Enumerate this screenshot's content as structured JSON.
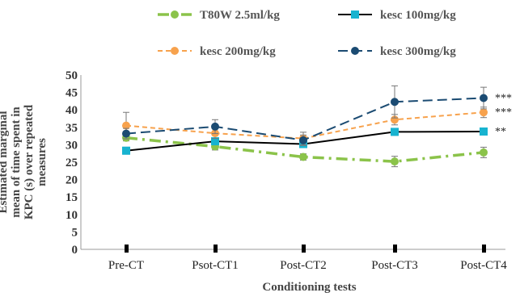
{
  "chart_data": {
    "type": "line",
    "xlabel": "Conditioning tests",
    "ylabel": "Estimated marginal mean of time spent in KPC (s) over repeated measures",
    "ylim": [
      0,
      50
    ],
    "yticks": [
      0,
      5,
      10,
      15,
      20,
      25,
      30,
      35,
      40,
      45,
      50
    ],
    "categories": [
      "Pre-CT",
      "Psot-CT1",
      "Post-CT2",
      "Post-CT3",
      "Post-CT4"
    ],
    "grid": false,
    "legend": "top",
    "series": [
      {
        "name": "T80W 2.5ml/kg",
        "values": [
          32,
          29.5,
          26.5,
          25.2,
          27.8
        ],
        "errors": [
          0.9,
          1.0,
          0.9,
          1.5,
          1.5
        ],
        "color": "#8bc34a",
        "style": "dashdot",
        "marker": "circle"
      },
      {
        "name": "kesc 100mg/kg",
        "values": [
          28.3,
          31,
          30.2,
          33.7,
          33.8
        ],
        "errors": [
          1.0,
          0.9,
          0.9,
          1.0,
          1.0
        ],
        "color": "#000000",
        "marker_color": "#17b3d0",
        "style": "solid",
        "marker": "square"
      },
      {
        "name": "kesc 200mg/kg",
        "values": [
          35.5,
          33.3,
          31.8,
          37.2,
          39.3
        ],
        "errors": [
          3.8,
          1.5,
          1.8,
          1.5,
          1.5
        ],
        "color": "#f7a24d",
        "style": "dashed",
        "marker": "circle"
      },
      {
        "name": "kesc 300mg/kg",
        "values": [
          33.2,
          35.2,
          31.3,
          42.3,
          43.4
        ],
        "errors": [
          1.5,
          2.0,
          1.5,
          4.6,
          3.1
        ],
        "color": "#1b4b72",
        "style": "longdash",
        "marker": "circle"
      }
    ],
    "annotations": [
      {
        "text": "***",
        "series": 3,
        "category": 4
      },
      {
        "text": "***",
        "series": 2,
        "category": 4
      },
      {
        "text": "**",
        "series": 1,
        "category": 4
      }
    ]
  }
}
